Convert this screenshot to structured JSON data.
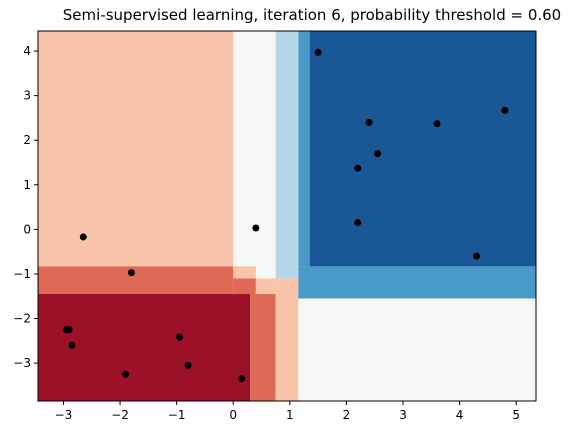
{
  "chart_data": {
    "type": "scatter",
    "title": "Semi-supervised learning, iteration 6, probability threshold = 0.60",
    "xlabel": "",
    "ylabel": "",
    "xlim": [
      -3.45,
      5.35
    ],
    "ylim": [
      -3.85,
      4.45
    ],
    "grid": false,
    "x_ticks": [
      -3,
      -2,
      -1,
      0,
      1,
      2,
      3,
      4,
      5
    ],
    "y_ticks": [
      -3,
      -2,
      -1,
      0,
      1,
      2,
      3,
      4
    ],
    "points": {
      "x": [
        -2.65,
        -1.8,
        -2.95,
        -2.9,
        -2.85,
        -1.9,
        -0.95,
        -0.8,
        0.15,
        0.4,
        1.5,
        2.4,
        2.55,
        2.2,
        2.2,
        3.6,
        4.8,
        4.3
      ],
      "y": [
        -0.17,
        -0.97,
        -2.25,
        -2.25,
        -2.6,
        -3.25,
        -2.42,
        -3.05,
        -3.35,
        0.03,
        3.97,
        2.4,
        1.7,
        1.37,
        0.15,
        2.37,
        2.67,
        -0.6
      ],
      "color": "#000000"
    },
    "regions": [
      {
        "x0": -3.45,
        "x1": 0.0,
        "y0": -0.83,
        "y1": 4.45,
        "color": "#f9c4a9"
      },
      {
        "x0": -3.45,
        "x1": 0.0,
        "y0": -1.45,
        "y1": -0.83,
        "color": "#de6a55"
      },
      {
        "x0": -3.45,
        "x1": 0.3,
        "y0": -3.85,
        "y1": -1.45,
        "color": "#9c1127"
      },
      {
        "x0": 0.3,
        "x1": 0.75,
        "y0": -3.85,
        "y1": -1.45,
        "color": "#de6a55"
      },
      {
        "x0": 0.0,
        "x1": 0.4,
        "y0": -1.45,
        "y1": -1.1,
        "color": "#de6a55"
      },
      {
        "x0": 0.0,
        "x1": 0.4,
        "y0": -1.1,
        "y1": -0.83,
        "color": "#f9c4a9"
      },
      {
        "x0": 0.4,
        "x1": 0.75,
        "y0": -1.45,
        "y1": -1.1,
        "color": "#f9c4a9"
      },
      {
        "x0": 0.75,
        "x1": 1.15,
        "y0": -3.85,
        "y1": -1.45,
        "color": "#f9c4a9"
      },
      {
        "x0": 0.75,
        "x1": 1.15,
        "y0": -1.45,
        "y1": -1.1,
        "color": "#f9c4a9"
      },
      {
        "x0": 1.15,
        "x1": 5.35,
        "y0": -1.55,
        "y1": -0.83,
        "color": "#4a9ac8"
      },
      {
        "x0": 1.15,
        "x1": 1.35,
        "y0": -0.83,
        "y1": 4.45,
        "color": "#4a9ac8"
      },
      {
        "x0": 0.75,
        "x1": 1.15,
        "y0": -0.83,
        "y1": 4.45,
        "color": "#b5d6e8"
      },
      {
        "x0": 0.75,
        "x1": 1.15,
        "y0": -1.1,
        "y1": -0.83,
        "color": "#b5d6e8"
      },
      {
        "x0": 1.35,
        "x1": 5.35,
        "y0": -0.83,
        "y1": 4.45,
        "color": "#1a5797"
      }
    ],
    "background_color": "#f6f7f7"
  }
}
